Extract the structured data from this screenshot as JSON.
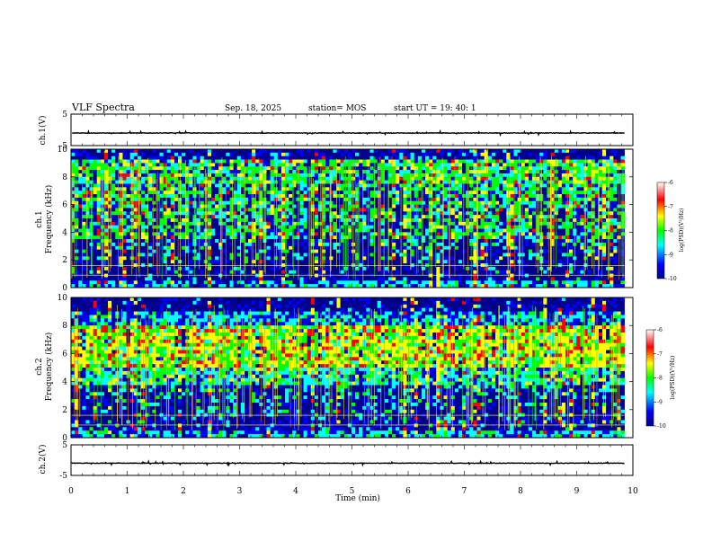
{
  "header": {
    "title": "VLF Spectra",
    "date": "Sep. 18, 2025",
    "station": "station= MOS",
    "start_ut": "start  UT =   19: 40: 1"
  },
  "chart_data": [
    {
      "type": "line",
      "name": "ch1-voltage",
      "ylabel": "ch.1(V)",
      "ylim": [
        -5,
        5
      ],
      "ytick_labels": [
        "5",
        "-5"
      ],
      "baseline_value": -1,
      "xlim": [
        0,
        10
      ]
    },
    {
      "type": "heatmap",
      "name": "ch1-spectrogram",
      "ylabel_top": "ch.1",
      "ylabel": "Frequency (kHz)",
      "ylim": [
        0,
        10
      ],
      "ytick_labels": [
        "0",
        "2",
        "4",
        "6",
        "8",
        "10"
      ],
      "xlim": [
        0,
        10
      ],
      "data_end_min": 9.85,
      "colorbar": {
        "label": "log(PSD)(V²/Hz)",
        "range": [
          -10,
          -6
        ],
        "tick_labels": [
          "-6",
          "-7",
          "-8",
          "-9",
          "-10"
        ]
      }
    },
    {
      "type": "heatmap",
      "name": "ch2-spectrogram",
      "ylabel_top": "ch.2",
      "ylabel": "Frequency (kHz)",
      "ylim": [
        0,
        10
      ],
      "ytick_labels": [
        "0",
        "2",
        "4",
        "6",
        "8",
        "10"
      ],
      "xlim": [
        0,
        10
      ],
      "data_end_min": 9.85,
      "colorbar": {
        "label": "log(PSD)(V²/Hz)",
        "range": [
          -10,
          -6
        ],
        "tick_labels": [
          "-6",
          "-7",
          "-8",
          "-9",
          "-10"
        ]
      }
    },
    {
      "type": "line",
      "name": "ch2-voltage",
      "ylabel": "ch.2(V)",
      "ylim": [
        -5,
        5
      ],
      "ytick_labels": [
        "5",
        "-5"
      ],
      "baseline_value": -1,
      "xlim": [
        0,
        10
      ],
      "xlabel": "Time (min)",
      "xtick_labels": [
        "0",
        "1",
        "2",
        "3",
        "4",
        "5",
        "6",
        "7",
        "8",
        "9",
        "10"
      ]
    }
  ],
  "colors": {
    "jet": [
      "#00008f",
      "#0000ff",
      "#00ffff",
      "#00ff00",
      "#ffff00",
      "#ff0000",
      "#ffffff"
    ],
    "axis": "#000000"
  }
}
